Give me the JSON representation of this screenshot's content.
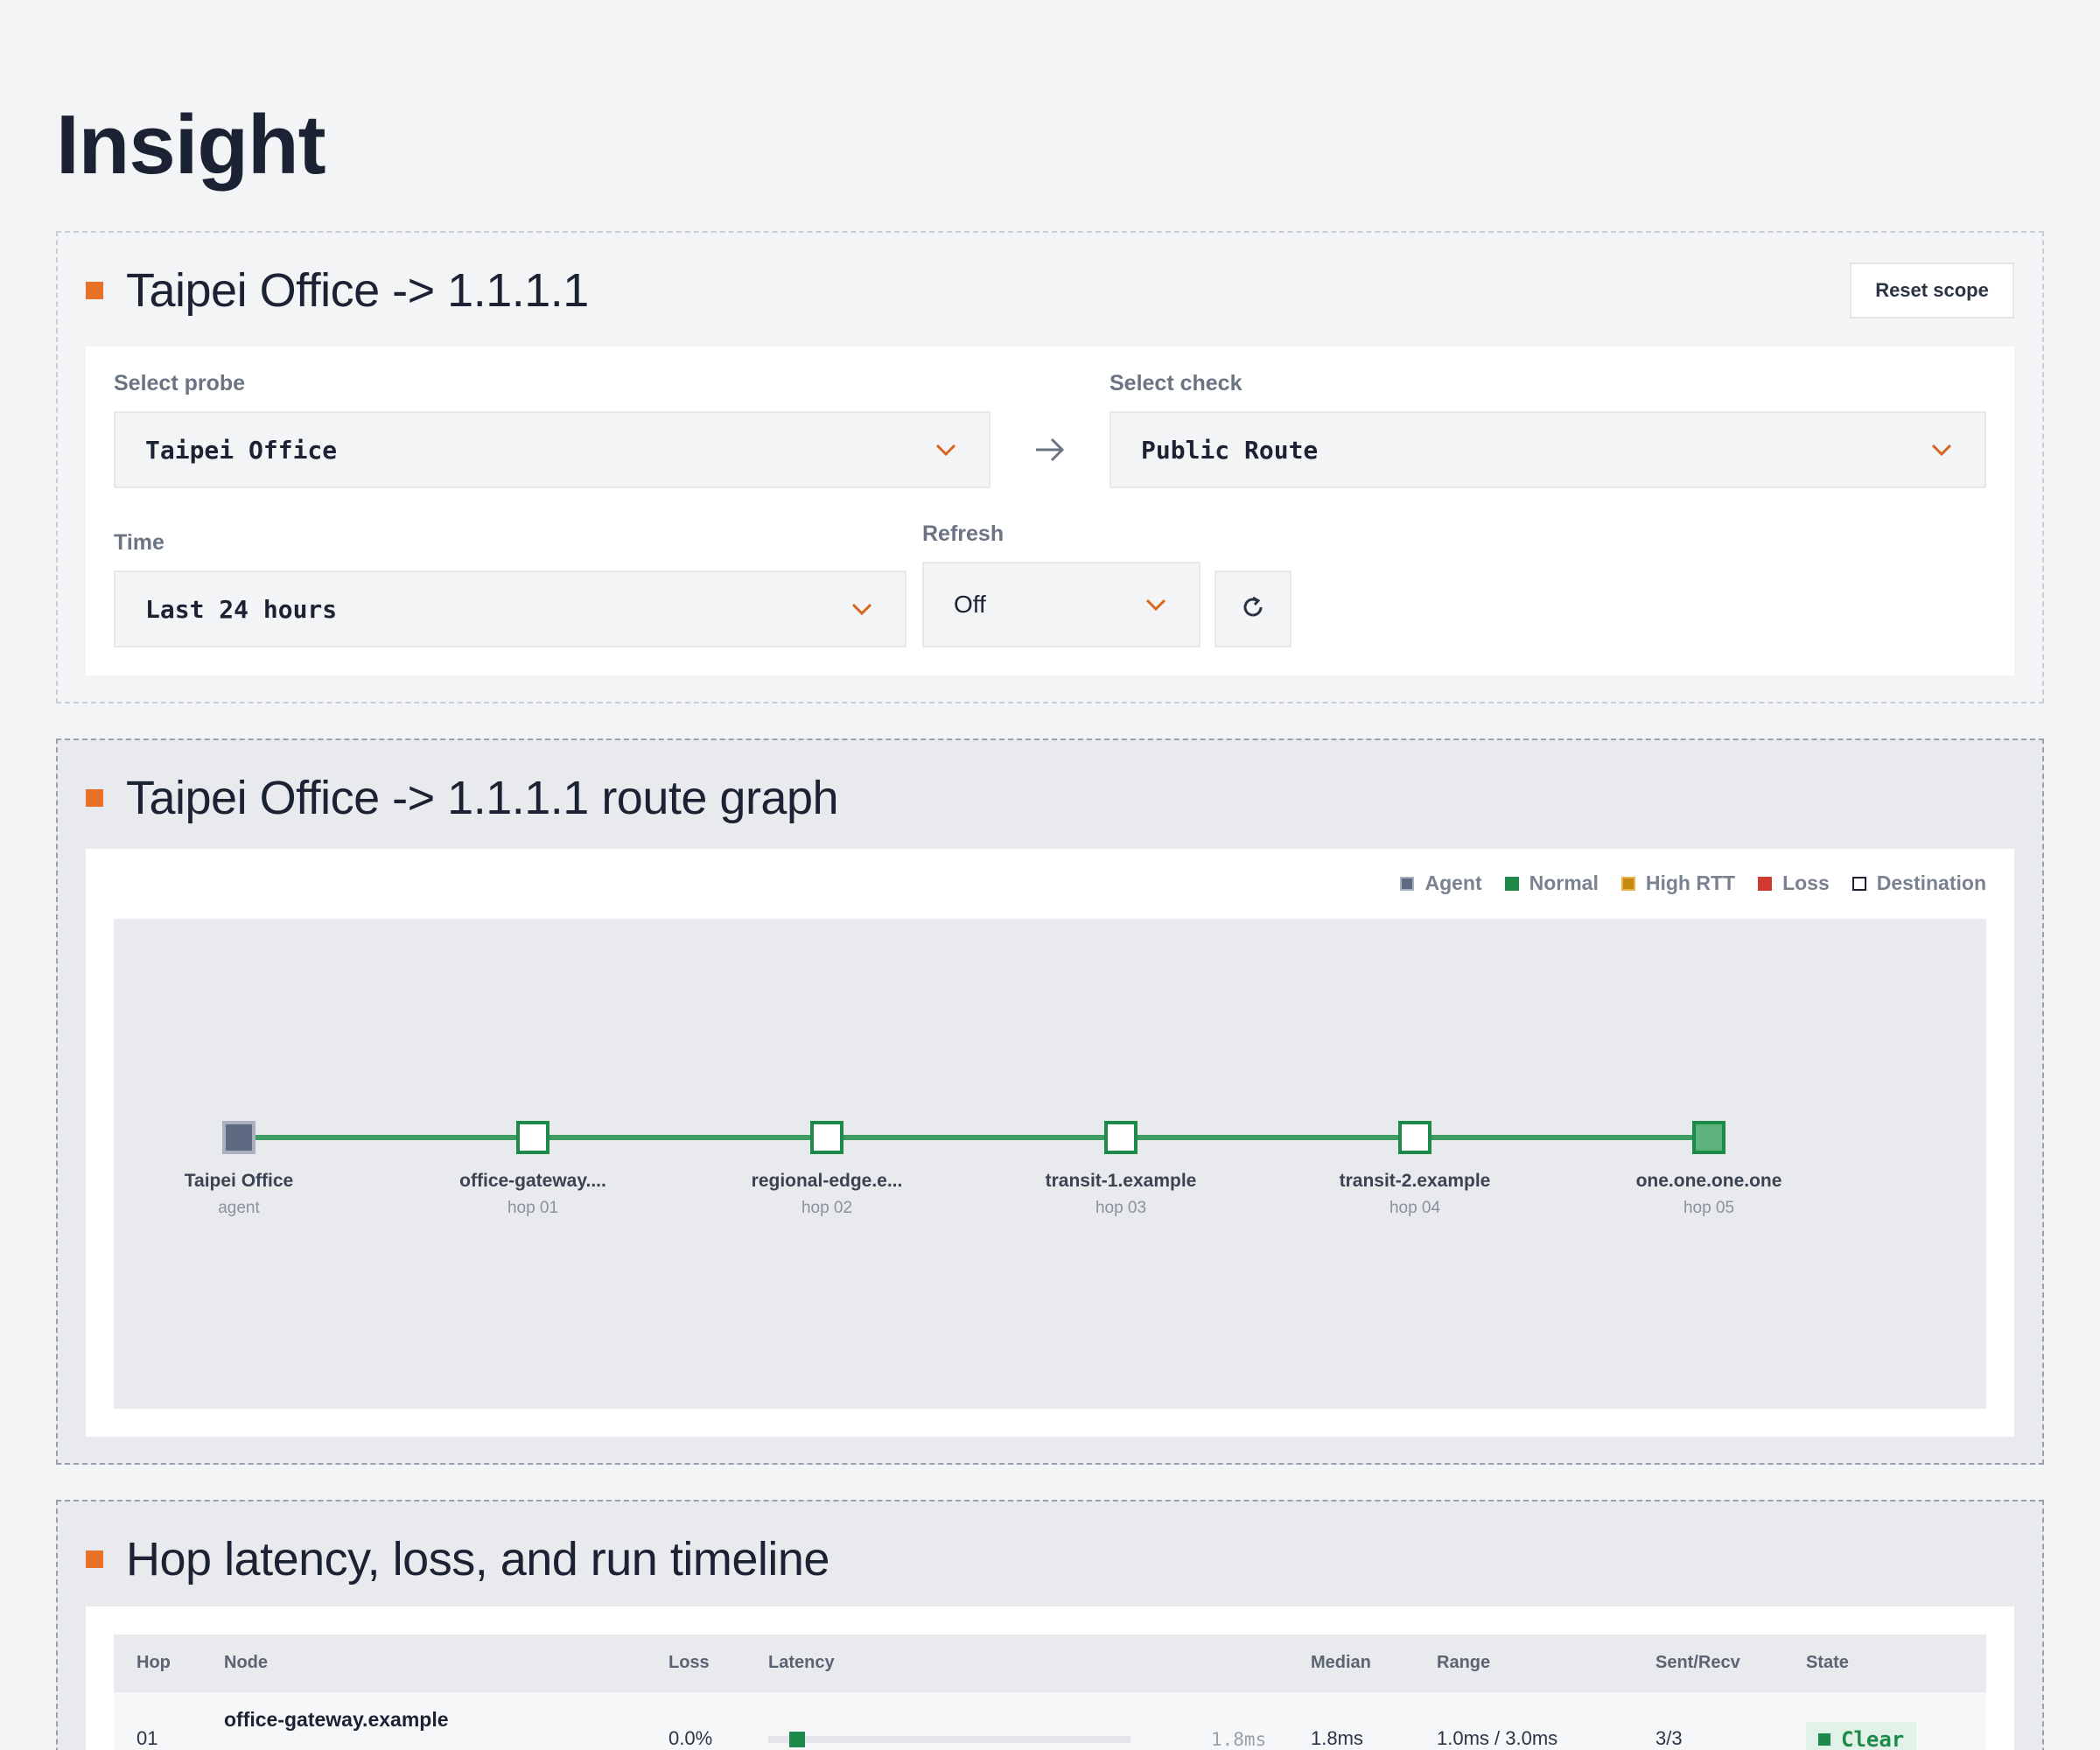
{
  "page": {
    "title": "Insight"
  },
  "scope": {
    "title": "Taipei Office -> 1.1.1.1",
    "reset_label": "Reset scope",
    "probe_label": "Select probe",
    "probe_value": "Taipei Office",
    "check_label": "Select check",
    "check_value": "Public Route",
    "time_label": "Time",
    "time_value": "Last 24 hours",
    "refresh_label": "Refresh",
    "refresh_value": "Off",
    "icons": [
      "chevron-down-icon",
      "arrow-right-icon",
      "refresh-icon"
    ],
    "accent_color": "#e8712a"
  },
  "graph": {
    "title": "Taipei Office -> 1.1.1.1 route graph",
    "legend": [
      {
        "label": "Agent",
        "color": "#5d6a82"
      },
      {
        "label": "Normal",
        "color": "#1e8a4a"
      },
      {
        "label": "High RTT",
        "color": "#c98a12"
      },
      {
        "label": "Loss",
        "color": "#d03a2f"
      },
      {
        "label": "Destination",
        "color": "#ffffff"
      }
    ],
    "nodes": [
      {
        "name": "Taipei Office",
        "sub": "agent",
        "kind": "agent"
      },
      {
        "name": "office-gateway....",
        "sub": "hop 01",
        "kind": "hop"
      },
      {
        "name": "regional-edge.e...",
        "sub": "hop 02",
        "kind": "hop"
      },
      {
        "name": "transit-1.example",
        "sub": "hop 03",
        "kind": "hop"
      },
      {
        "name": "transit-2.example",
        "sub": "hop 04",
        "kind": "hop"
      },
      {
        "name": "one.one.one.one",
        "sub": "hop 05",
        "kind": "destination"
      }
    ],
    "link_color": "#3f9c60"
  },
  "timeline": {
    "title": "Hop latency, loss, and run timeline",
    "columns": [
      "Hop",
      "Node",
      "Loss",
      "Latency",
      "Median",
      "Range",
      "Sent/Recv",
      "State"
    ],
    "rows": [
      {
        "hop": "01",
        "node": "office-gateway.example",
        "loss": "0.0%",
        "latency": "1.8ms",
        "latency_fraction": 0.05,
        "median": "1.8ms",
        "range": "1.0ms / 3.0ms",
        "sent_recv": "3/3",
        "state": "Clear"
      }
    ]
  }
}
